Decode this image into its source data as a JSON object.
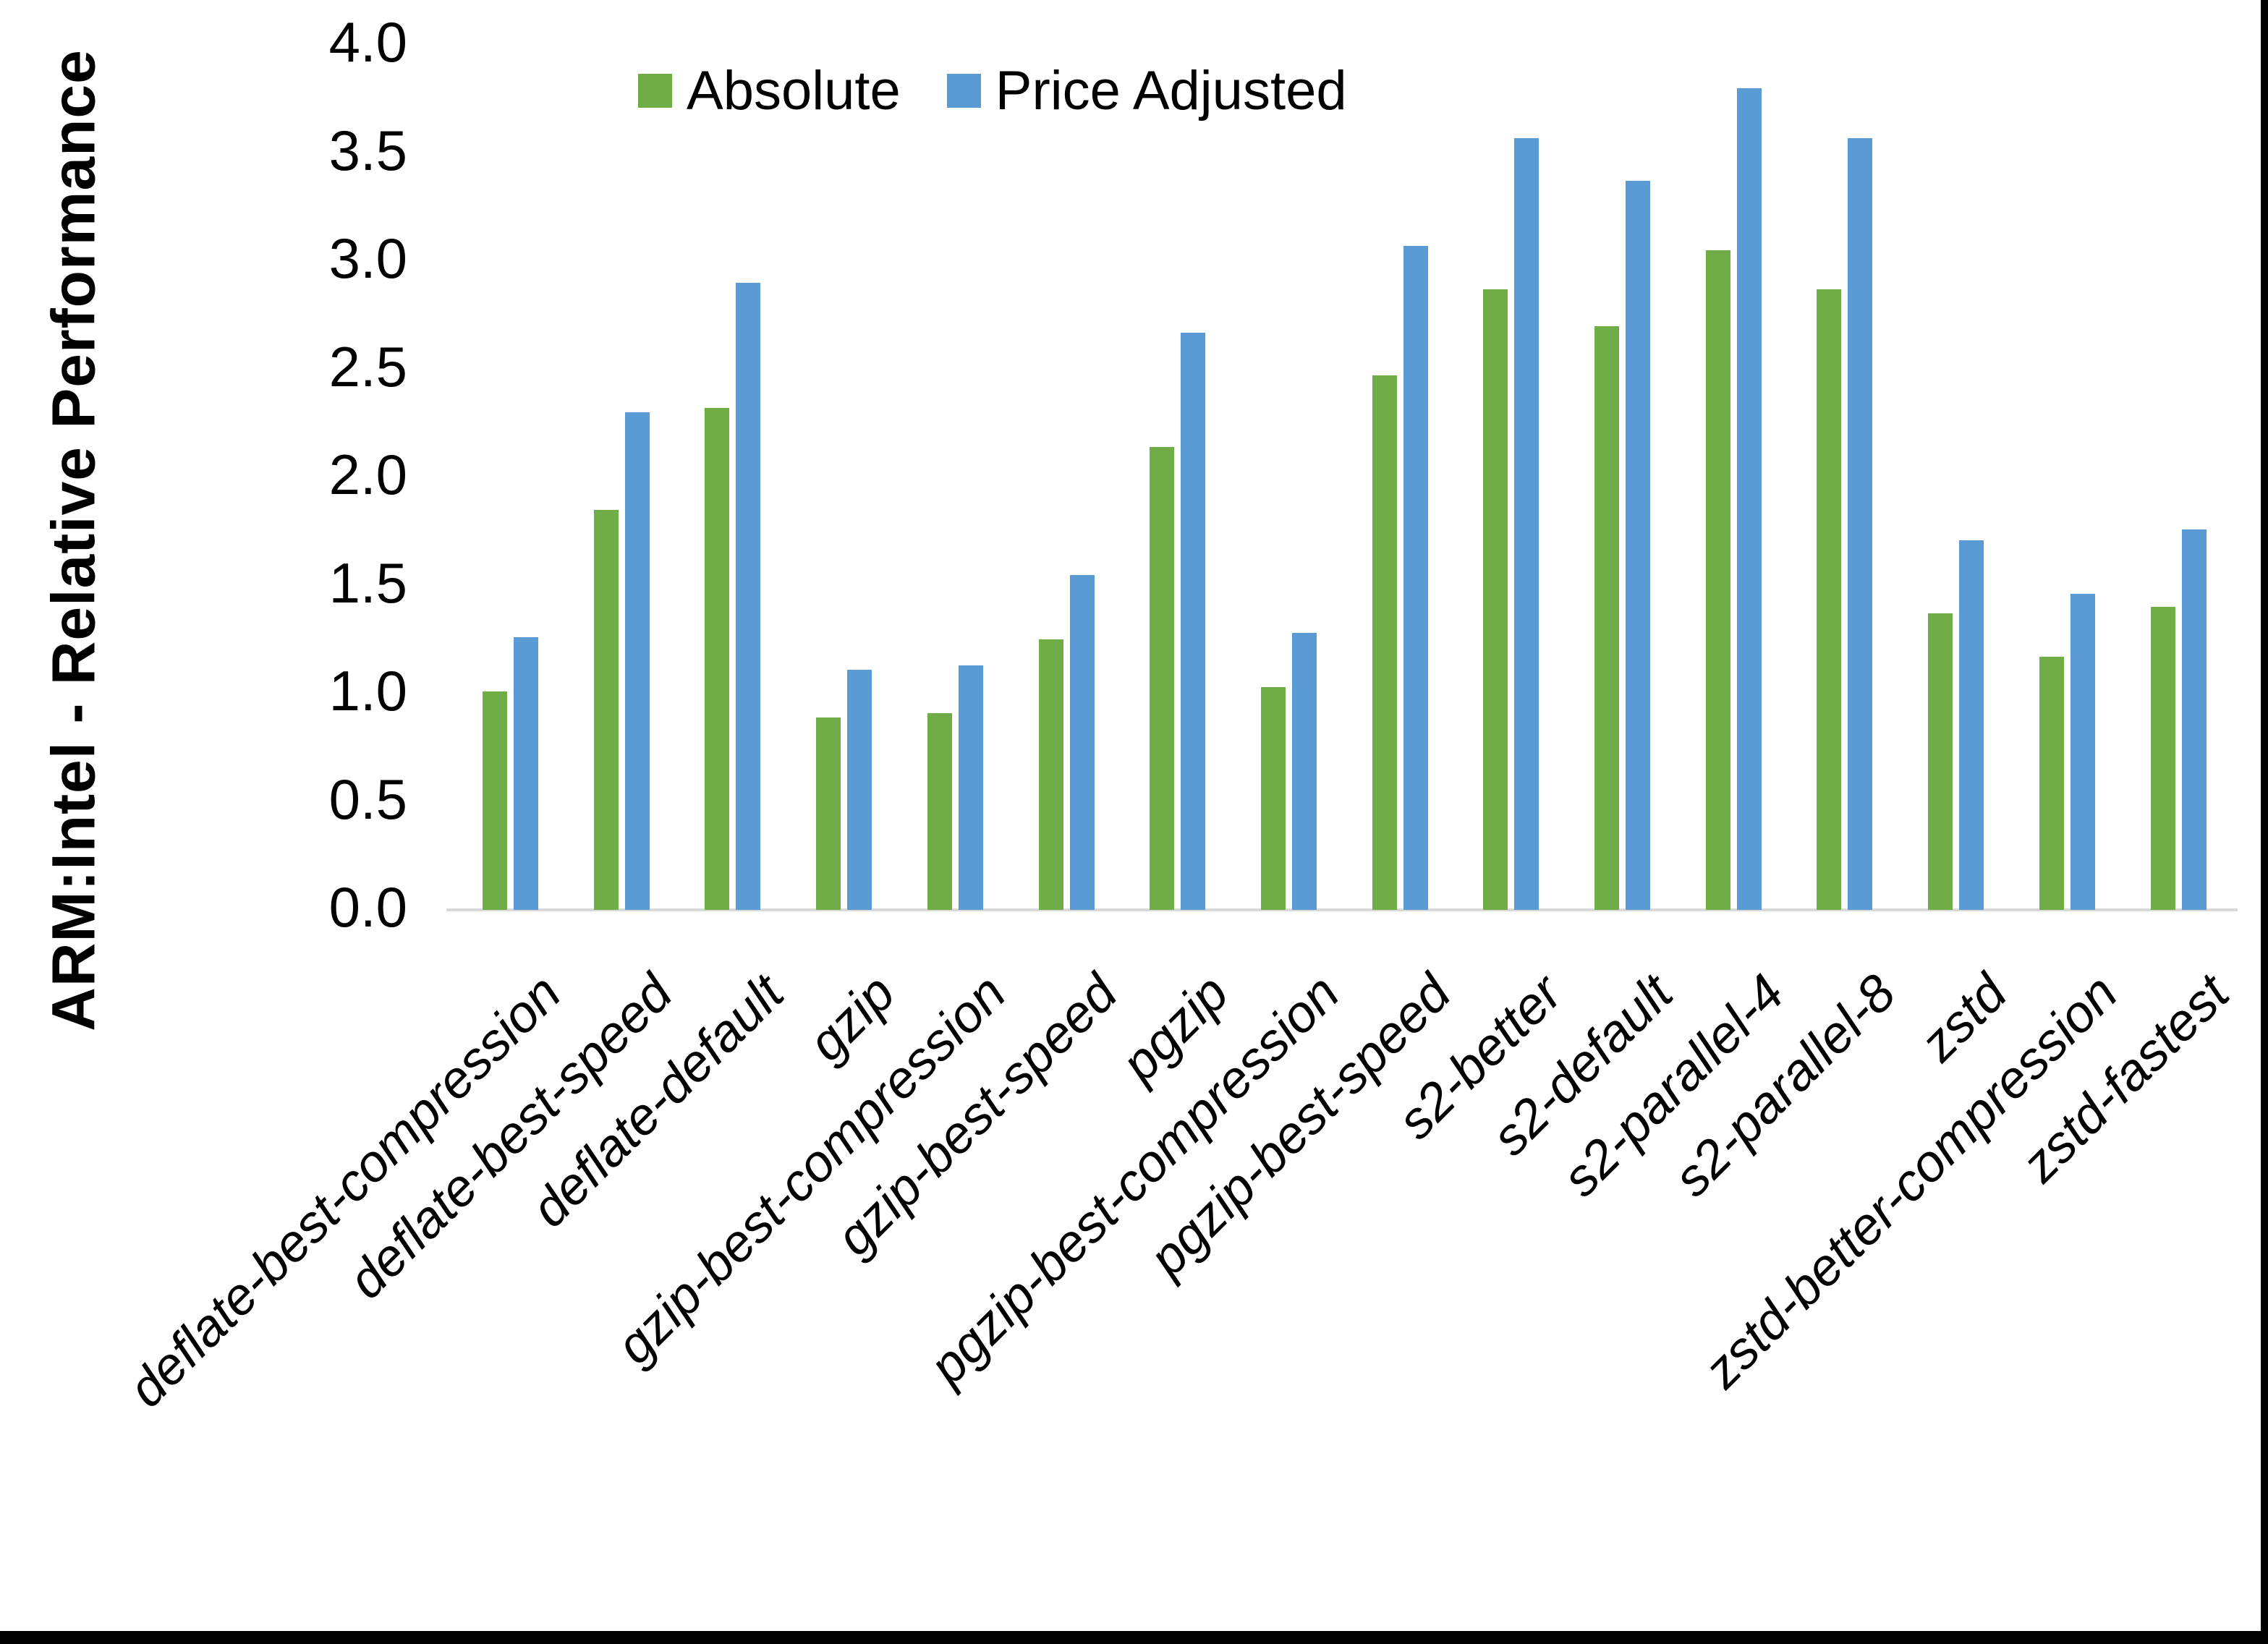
{
  "chart_data": {
    "type": "bar",
    "title": "",
    "xlabel": "",
    "ylabel": "ARM:Intel - Relative Performance",
    "ylim": [
      0.0,
      4.0
    ],
    "ytick_step": 0.5,
    "grid": false,
    "legend_position": "top-center",
    "background": "#ffffff",
    "axis_line_color": "#d9d9d9",
    "categories": [
      "deflate-best-compression",
      "deflate-best-speed",
      "deflate-default",
      "gzip",
      "gzip-best-compression",
      "gzip-best-speed",
      "pgzip",
      "pgzip-best-compression",
      "pgzip-best-speed",
      "s2-better",
      "s2-default",
      "s2-parallel-4",
      "s2-parallel-8",
      "zstd",
      "zstd-better-compression",
      "zstd-fastest"
    ],
    "series": [
      {
        "name": "Absolute",
        "color": "#70AD47",
        "values": [
          1.01,
          1.85,
          2.32,
          0.89,
          0.91,
          1.25,
          2.14,
          1.03,
          2.47,
          2.87,
          2.7,
          3.05,
          2.87,
          1.37,
          1.17,
          1.4
        ]
      },
      {
        "name": "Price Adjusted",
        "color": "#5B9BD5",
        "values": [
          1.26,
          2.3,
          2.9,
          1.11,
          1.13,
          1.55,
          2.67,
          1.28,
          3.07,
          3.57,
          3.37,
          3.8,
          3.57,
          1.71,
          1.46,
          1.76
        ]
      }
    ]
  }
}
